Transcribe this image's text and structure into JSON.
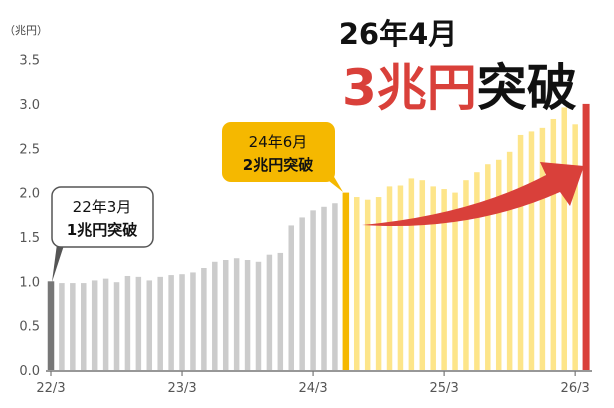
{
  "chart_data": {
    "type": "bar",
    "unit_label": "（兆円）",
    "ylim": [
      0,
      3.5
    ],
    "yticks": [
      "0.0",
      "0.5",
      "1.0",
      "1.5",
      "2.0",
      "2.5",
      "3.0",
      "3.5"
    ],
    "xtick_labels": [
      "22/3",
      "23/3",
      "24/3",
      "25/3",
      "26/3"
    ],
    "grid": false,
    "categories": [
      "22/3",
      "22/4",
      "22/5",
      "22/6",
      "22/7",
      "22/8",
      "22/9",
      "22/10",
      "22/11",
      "22/12",
      "23/1",
      "23/2",
      "23/3",
      "23/4",
      "23/5",
      "23/6",
      "23/7",
      "23/8",
      "23/9",
      "23/10",
      "23/11",
      "23/12",
      "24/1",
      "24/2",
      "24/3",
      "24/4",
      "24/5",
      "24/6",
      "24/7",
      "24/8",
      "24/9",
      "24/10",
      "24/11",
      "24/12",
      "25/1",
      "25/2",
      "25/3",
      "25/4",
      "25/5",
      "25/6",
      "25/7",
      "25/8",
      "25/9",
      "25/10",
      "25/11",
      "25/12",
      "26/1",
      "26/2",
      "26/3",
      "26/4"
    ],
    "values": [
      1.0,
      0.98,
      0.98,
      0.98,
      1.01,
      1.03,
      0.99,
      1.06,
      1.05,
      1.01,
      1.05,
      1.07,
      1.08,
      1.1,
      1.15,
      1.22,
      1.24,
      1.26,
      1.24,
      1.22,
      1.3,
      1.32,
      1.63,
      1.72,
      1.8,
      1.84,
      1.88,
      2.0,
      1.95,
      1.92,
      1.95,
      2.07,
      2.08,
      2.16,
      2.14,
      2.07,
      2.04,
      2.0,
      2.14,
      2.23,
      2.32,
      2.37,
      2.46,
      2.65,
      2.69,
      2.73,
      2.83,
      2.96,
      2.77,
      3.0
    ],
    "colors": {
      "before": "#cccccc",
      "milestone1": "#777777",
      "milestone2": "#f5b800",
      "after": "#fde58a",
      "milestone3": "#d9403a"
    },
    "annotations": {
      "m1": {
        "line1": "22年3月",
        "line2": "1兆円突破"
      },
      "m2": {
        "line1": "24年6月",
        "line2": "2兆円突破"
      },
      "headline": {
        "date": "26年4月",
        "amount": "3兆円",
        "suffix": "突破"
      }
    }
  }
}
